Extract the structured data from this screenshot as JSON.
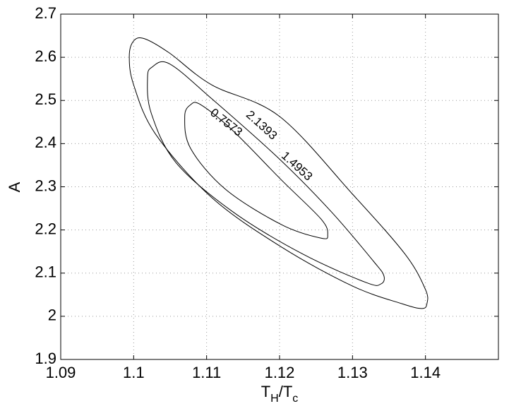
{
  "chart_data": {
    "type": "contour",
    "xlabel": [
      "T",
      "H",
      "/T",
      "c"
    ],
    "ylabel": "A",
    "xlim": [
      1.09,
      1.15
    ],
    "ylim": [
      1.9,
      2.7
    ],
    "xticks": [
      1.09,
      1.1,
      1.11,
      1.12,
      1.13,
      1.14
    ],
    "yticks": [
      1.9,
      2,
      2.1,
      2.2,
      2.3,
      2.4,
      2.5,
      2.6,
      2.7
    ],
    "grid": true,
    "color": "#000000",
    "contours": [
      {
        "level": 2.1393,
        "x": [
          1.1015,
          1.1049,
          1.1107,
          1.12,
          1.13,
          1.1372,
          1.14,
          1.1402,
          1.1395,
          1.1368,
          1.13,
          1.1203,
          1.1107,
          1.103,
          1.1,
          1.0994,
          1.1
        ],
        "y": [
          2.643,
          2.61,
          2.536,
          2.463,
          2.283,
          2.144,
          2.062,
          2.029,
          2.018,
          2.029,
          2.07,
          2.16,
          2.275,
          2.422,
          2.536,
          2.602,
          2.638
        ]
      },
      {
        "level": 1.4953,
        "x": [
          1.1049,
          1.1107,
          1.12,
          1.1271,
          1.1329,
          1.1343,
          1.1339,
          1.1319,
          1.1232,
          1.1136,
          1.1058,
          1.1024,
          1.1019,
          1.1025
        ],
        "y": [
          2.585,
          2.504,
          2.364,
          2.242,
          2.127,
          2.094,
          2.075,
          2.078,
          2.144,
          2.242,
          2.356,
          2.471,
          2.552,
          2.577
        ]
      },
      {
        "level": 0.7573,
        "x": [
          1.1092,
          1.1136,
          1.1203,
          1.1257,
          1.1266,
          1.1257,
          1.1203,
          1.1126,
          1.1078,
          1.107,
          1.1078
        ],
        "y": [
          2.49,
          2.43,
          2.315,
          2.225,
          2.189,
          2.181,
          2.212,
          2.294,
          2.389,
          2.463,
          2.49
        ]
      }
    ]
  }
}
